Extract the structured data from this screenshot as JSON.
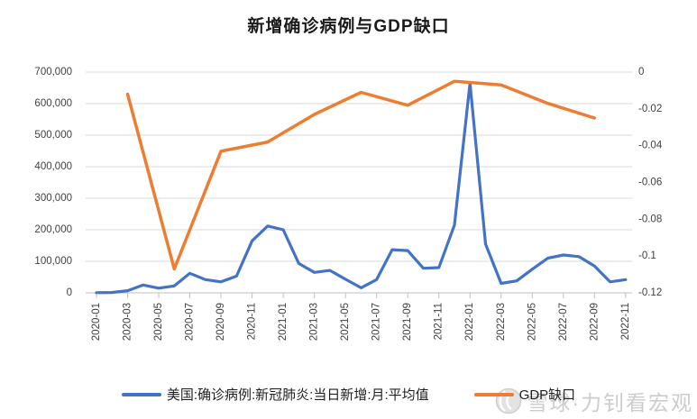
{
  "title": "新增确诊病例与GDP缺口",
  "colors": {
    "series_blue": "#4472C4",
    "series_orange": "#ED7D31",
    "gridline": "#D9D9D9",
    "axis_line": "#BFBFBF",
    "axis_text": "#404040",
    "watermark_text": "#CCCCCC"
  },
  "legend": {
    "item1": "美国:确诊病例:新冠肺炎:当日新增:月:平均值",
    "item2": "GDP缺口"
  },
  "watermark": {
    "text": "雪球·力钊看宏观",
    "logo": "xueqiu-snowball-logo"
  },
  "chart_data": {
    "type": "line",
    "title": "新增确诊病例与GDP缺口",
    "grid": true,
    "legend_position": "bottom",
    "months": [
      "2020-01",
      "2020-02",
      "2020-03",
      "2020-04",
      "2020-05",
      "2020-06",
      "2020-07",
      "2020-08",
      "2020-09",
      "2020-10",
      "2020-11",
      "2020-12",
      "2021-01",
      "2021-02",
      "2021-03",
      "2021-04",
      "2021-05",
      "2021-06",
      "2021-07",
      "2021-08",
      "2021-09",
      "2021-10",
      "2021-11",
      "2021-12",
      "2022-01",
      "2022-02",
      "2022-03",
      "2022-04",
      "2022-05",
      "2022-06",
      "2022-07",
      "2022-08",
      "2022-09",
      "2022-10",
      "2022-11"
    ],
    "x_axis": {
      "tick_labels": [
        "2020-01",
        "2020-03",
        "2020-05",
        "2020-07",
        "2020-09",
        "2020-11",
        "2021-01",
        "2021-03",
        "2021-05",
        "2021-07",
        "2021-09",
        "2021-11",
        "2022-01",
        "2022-03",
        "2022-05",
        "2022-07",
        "2022-09",
        "2022-11"
      ]
    },
    "left_axis": {
      "min": 0,
      "max": 700000,
      "step": 100000,
      "tick_labels": [
        "700,000",
        "600,000",
        "500,000",
        "400,000",
        "300,000",
        "200,000",
        "100,000",
        "0"
      ]
    },
    "right_axis": {
      "min": -0.12,
      "max": 0,
      "step": 0.02,
      "tick_labels": [
        "0",
        "-0.02",
        "-0.04",
        "-0.06",
        "-0.08",
        "-0.1",
        "-0.12"
      ]
    },
    "series": [
      {
        "id": "cases",
        "name": "美国:确诊病例:新冠肺炎:当日新增:月:平均值",
        "axis": "left",
        "color": "#4472C4",
        "values": [
          500,
          1000,
          7000,
          25000,
          15000,
          22000,
          62000,
          42000,
          35000,
          53000,
          165000,
          212000,
          200000,
          93000,
          65000,
          71000,
          43000,
          16000,
          42000,
          137000,
          134000,
          78000,
          80000,
          215000,
          665000,
          155000,
          30000,
          38000,
          75000,
          110000,
          120000,
          115000,
          85000,
          35000,
          42000
        ]
      },
      {
        "id": "gdp_gap",
        "name": "GDP缺口",
        "axis": "right",
        "color": "#ED7D31",
        "months": [
          "2020-03",
          "2020-06",
          "2020-09",
          "2020-12",
          "2021-03",
          "2021-06",
          "2021-09",
          "2021-12",
          "2022-03",
          "2022-06",
          "2022-09"
        ],
        "values": [
          -0.012,
          -0.107,
          -0.043,
          -0.038,
          -0.023,
          -0.011,
          -0.018,
          -0.005,
          -0.007,
          -0.017,
          -0.025
        ]
      }
    ]
  }
}
